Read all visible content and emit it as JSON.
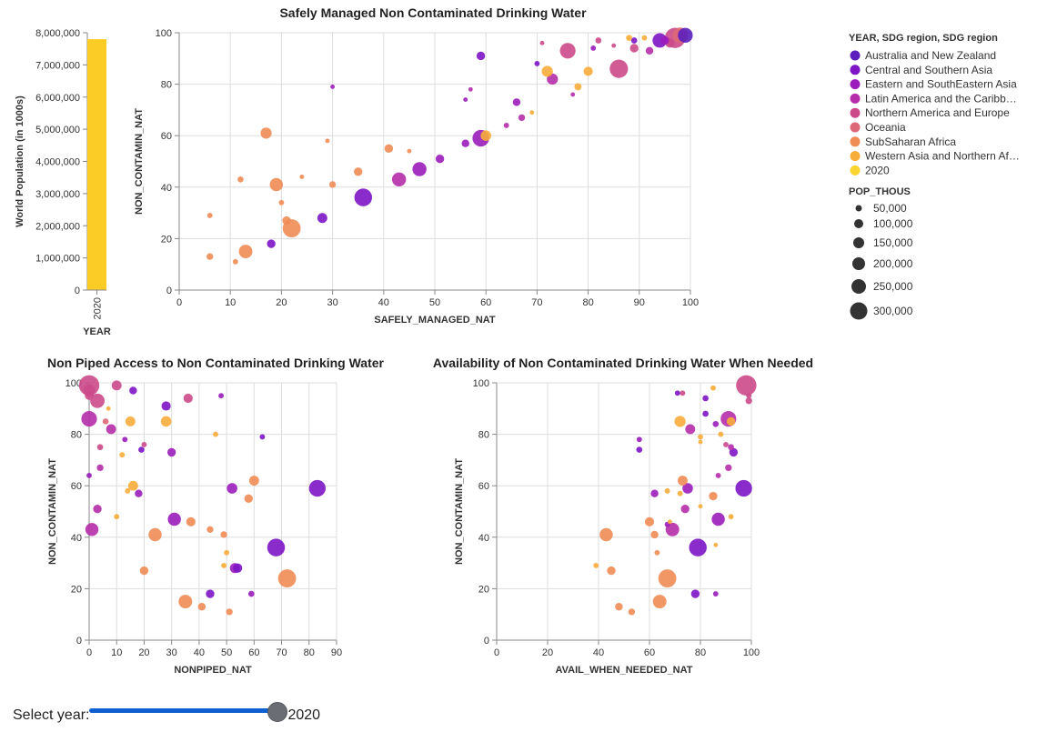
{
  "legend": {
    "color_title": "YEAR, SDG region, SDG region",
    "size_title": "POP_THOUS",
    "items": [
      {
        "label": "Australia and New Zealand",
        "color": "#5a1fbd"
      },
      {
        "label": "Central and Southern Asia",
        "color": "#7d15c6"
      },
      {
        "label": "Eastern and SouthEastern Asia",
        "color": "#9b1dbb"
      },
      {
        "label": "Latin America and the Caribb…",
        "color": "#b62da9"
      },
      {
        "label": "Northern America and Europe",
        "color": "#cc4a8a"
      },
      {
        "label": "Oceania",
        "color": "#dd6877"
      },
      {
        "label": "SubSaharan Africa",
        "color": "#ef8c55"
      },
      {
        "label": "Western Asia and Northern Af…",
        "color": "#f8ac3a"
      },
      {
        "label": "2020",
        "color": "#fbd430"
      }
    ],
    "sizes": [
      "50,000",
      "100,000",
      "150,000",
      "200,000",
      "250,000",
      "300,000"
    ]
  },
  "slider": {
    "label": "Select year:",
    "value": "2020"
  },
  "chart_data": [
    {
      "type": "bar",
      "categories": [
        "2020"
      ],
      "values": [
        7800000
      ],
      "xlabel": "YEAR",
      "ylabel": "World Population (in 1000s)",
      "ylim": [
        0,
        8000000
      ],
      "yticks": [
        "0",
        "1,000,000",
        "2,000,000",
        "3,000,000",
        "4,000,000",
        "5,000,000",
        "6,000,000",
        "7,000,000",
        "8,000,000"
      ],
      "color": "#fbcc26"
    },
    {
      "type": "scatter",
      "title": "Safely Managed Non Contaminated Drinking Water",
      "xlabel": "SAFELY_MANAGED_NAT",
      "ylabel": "NON_CONTAMIN_NAT",
      "xlim": [
        0,
        100
      ],
      "ylim": [
        0,
        100
      ],
      "xticks": [
        0,
        10,
        20,
        30,
        40,
        50,
        60,
        70,
        80,
        90,
        100
      ],
      "yticks": [
        0,
        20,
        40,
        60,
        80,
        100
      ],
      "points": [
        [
          98,
          99,
          5,
          180
        ],
        [
          97,
          98,
          4,
          330
        ],
        [
          99,
          99,
          0,
          160
        ],
        [
          94,
          97,
          1,
          150
        ],
        [
          96,
          96,
          4,
          50
        ],
        [
          95,
          97,
          2,
          40
        ],
        [
          92,
          93,
          3,
          30
        ],
        [
          89,
          94,
          4,
          40
        ],
        [
          86,
          86,
          4,
          260
        ],
        [
          89,
          97,
          1,
          15
        ],
        [
          82,
          97,
          4,
          15
        ],
        [
          81,
          94,
          2,
          10
        ],
        [
          76,
          93,
          4,
          180
        ],
        [
          73,
          82,
          3,
          80
        ],
        [
          72,
          85,
          7,
          80
        ],
        [
          80,
          85,
          7,
          50
        ],
        [
          78,
          79,
          7,
          25
        ],
        [
          88,
          98,
          7,
          15
        ],
        [
          91,
          98,
          7,
          10
        ],
        [
          77,
          76,
          3,
          5
        ],
        [
          85,
          95,
          4,
          5
        ],
        [
          71,
          96,
          4,
          5
        ],
        [
          59,
          91,
          1,
          40
        ],
        [
          70,
          88,
          1,
          10
        ],
        [
          66,
          73,
          2,
          30
        ],
        [
          67,
          67,
          3,
          20
        ],
        [
          56,
          74,
          2,
          5
        ],
        [
          57,
          78,
          3,
          5
        ],
        [
          59,
          59,
          2,
          210
        ],
        [
          60,
          60,
          7,
          70
        ],
        [
          56,
          57,
          2,
          30
        ],
        [
          51,
          51,
          2,
          40
        ],
        [
          47,
          47,
          2,
          140
        ],
        [
          43,
          43,
          3,
          140
        ],
        [
          36,
          36,
          1,
          240
        ],
        [
          28,
          28,
          1,
          60
        ],
        [
          18,
          18,
          1,
          40
        ],
        [
          30,
          79,
          2,
          5
        ],
        [
          17,
          61,
          6,
          80
        ],
        [
          41,
          55,
          6,
          40
        ],
        [
          35,
          46,
          6,
          40
        ],
        [
          30,
          41,
          6,
          20
        ],
        [
          19,
          41,
          6,
          120
        ],
        [
          22,
          24,
          6,
          250
        ],
        [
          21,
          27,
          6,
          40
        ],
        [
          13,
          15,
          6,
          130
        ],
        [
          20,
          34,
          6,
          10
        ],
        [
          12,
          43,
          6,
          15
        ],
        [
          6,
          29,
          6,
          10
        ],
        [
          6,
          13,
          6,
          20
        ],
        [
          11,
          11,
          6,
          10
        ],
        [
          24,
          44,
          6,
          5
        ],
        [
          29,
          58,
          6,
          5
        ],
        [
          45,
          54,
          6,
          5
        ],
        [
          64,
          64,
          3,
          10
        ],
        [
          69,
          69,
          7,
          5
        ]
      ]
    },
    {
      "type": "scatter",
      "title": "Non Piped Access to Non Contaminated Drinking Water",
      "xlabel": "NONPIPED_NAT",
      "ylabel": "NON_CONTAMIN_NAT",
      "xlim": [
        0,
        90
      ],
      "ylim": [
        0,
        100
      ],
      "xticks": [
        0,
        10,
        20,
        30,
        40,
        50,
        60,
        70,
        80,
        90
      ],
      "yticks": [
        0,
        20,
        40,
        60,
        80,
        100
      ],
      "points": [
        [
          0,
          99,
          4,
          330
        ],
        [
          0,
          86,
          3,
          180
        ],
        [
          3,
          93,
          4,
          150
        ],
        [
          1,
          43,
          3,
          120
        ],
        [
          0,
          97,
          4,
          100
        ],
        [
          0,
          95,
          4,
          40
        ],
        [
          10,
          99,
          4,
          60
        ],
        [
          8,
          82,
          3,
          60
        ],
        [
          4,
          75,
          4,
          15
        ],
        [
          4,
          67,
          3,
          20
        ],
        [
          3,
          51,
          3,
          40
        ],
        [
          0,
          64,
          2,
          10
        ],
        [
          6,
          85,
          5,
          15
        ],
        [
          13,
          78,
          2,
          10
        ],
        [
          15,
          85,
          7,
          60
        ],
        [
          16,
          97,
          1,
          30
        ],
        [
          19,
          74,
          1,
          15
        ],
        [
          20,
          76,
          4,
          10
        ],
        [
          28,
          91,
          1,
          50
        ],
        [
          36,
          94,
          4,
          50
        ],
        [
          30,
          73,
          2,
          40
        ],
        [
          48,
          95,
          2,
          10
        ],
        [
          10,
          48,
          7,
          10
        ],
        [
          16,
          60,
          7,
          60
        ],
        [
          14,
          58,
          7,
          10
        ],
        [
          18,
          57,
          2,
          30
        ],
        [
          28,
          85,
          7,
          70
        ],
        [
          31,
          47,
          2,
          120
        ],
        [
          24,
          41,
          6,
          120
        ],
        [
          35,
          15,
          6,
          130
        ],
        [
          37,
          46,
          6,
          50
        ],
        [
          20,
          27,
          6,
          40
        ],
        [
          41,
          13,
          6,
          30
        ],
        [
          44,
          43,
          6,
          20
        ],
        [
          44,
          18,
          1,
          40
        ],
        [
          46,
          80,
          7,
          10
        ],
        [
          49,
          41,
          6,
          20
        ],
        [
          50,
          34,
          7,
          10
        ],
        [
          49,
          29,
          7,
          10
        ],
        [
          52,
          59,
          2,
          70
        ],
        [
          53,
          28,
          2,
          60
        ],
        [
          54,
          28,
          1,
          50
        ],
        [
          51,
          11,
          6,
          20
        ],
        [
          58,
          55,
          6,
          40
        ],
        [
          60,
          62,
          6,
          60
        ],
        [
          59,
          18,
          2,
          15
        ],
        [
          63,
          79,
          1,
          10
        ],
        [
          68,
          36,
          1,
          240
        ],
        [
          72,
          24,
          6,
          250
        ],
        [
          83,
          59,
          1,
          210
        ],
        [
          12,
          72,
          7,
          10
        ],
        [
          7,
          90,
          7,
          5
        ]
      ]
    },
    {
      "type": "scatter",
      "title": "Availability of Non Contaminated Drinking Water When Needed",
      "xlabel": "AVAIL_WHEN_NEEDED_NAT",
      "ylabel": "NON_CONTAMIN_NAT",
      "xlim": [
        0,
        100
      ],
      "ylim": [
        0,
        100
      ],
      "xticks": [
        0,
        20,
        40,
        60,
        80,
        100
      ],
      "yticks": [
        0,
        20,
        40,
        60,
        80,
        100
      ],
      "points": [
        [
          98,
          99,
          4,
          330
        ],
        [
          91,
          86,
          3,
          180
        ],
        [
          97,
          59,
          1,
          210
        ],
        [
          79,
          36,
          1,
          240
        ],
        [
          67,
          24,
          6,
          250
        ],
        [
          64,
          15,
          6,
          130
        ],
        [
          43,
          41,
          6,
          120
        ],
        [
          69,
          43,
          3,
          130
        ],
        [
          87,
          47,
          2,
          120
        ],
        [
          72,
          85,
          7,
          80
        ],
        [
          76,
          82,
          3,
          60
        ],
        [
          73,
          62,
          6,
          60
        ],
        [
          75,
          59,
          2,
          70
        ],
        [
          74,
          51,
          3,
          40
        ],
        [
          72,
          57,
          7,
          10
        ],
        [
          62,
          57,
          2,
          30
        ],
        [
          60,
          46,
          6,
          50
        ],
        [
          62,
          41,
          6,
          30
        ],
        [
          67,
          58,
          7,
          10
        ],
        [
          45,
          27,
          6,
          40
        ],
        [
          48,
          13,
          6,
          30
        ],
        [
          53,
          11,
          6,
          20
        ],
        [
          56,
          78,
          2,
          10
        ],
        [
          56,
          74,
          1,
          15
        ],
        [
          73,
          96,
          4,
          10
        ],
        [
          80,
          79,
          7,
          10
        ],
        [
          82,
          88,
          1,
          15
        ],
        [
          85,
          98,
          7,
          10
        ],
        [
          86,
          84,
          2,
          15
        ],
        [
          88,
          80,
          7,
          10
        ],
        [
          90,
          76,
          4,
          10
        ],
        [
          92,
          75,
          3,
          15
        ],
        [
          93,
          73,
          1,
          40
        ],
        [
          91,
          67,
          3,
          20
        ],
        [
          87,
          64,
          3,
          10
        ],
        [
          82,
          94,
          1,
          15
        ],
        [
          92,
          85,
          7,
          40
        ],
        [
          99,
          95,
          4,
          10
        ],
        [
          99,
          93,
          4,
          20
        ],
        [
          86,
          37,
          7,
          5
        ],
        [
          86,
          18,
          2,
          10
        ],
        [
          78,
          18,
          1,
          40
        ],
        [
          63,
          34,
          6,
          10
        ],
        [
          39,
          29,
          7,
          10
        ],
        [
          71,
          96,
          1,
          10
        ],
        [
          80,
          77,
          7,
          5
        ],
        [
          92,
          48,
          7,
          10
        ],
        [
          80,
          52,
          7,
          5
        ],
        [
          85,
          56,
          6,
          40
        ],
        [
          67,
          45,
          2,
          10
        ],
        [
          68,
          46,
          7,
          5
        ]
      ]
    }
  ]
}
